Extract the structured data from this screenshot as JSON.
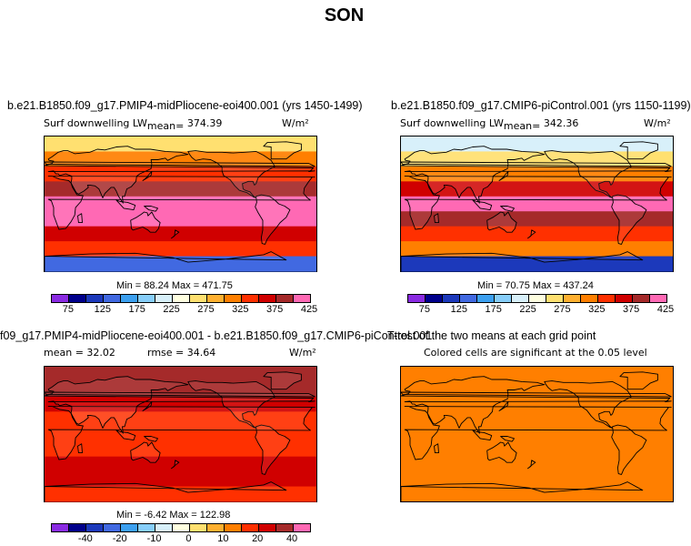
{
  "page": {
    "title": "SON"
  },
  "colorbar_colors": [
    "#8a2be2",
    "#00008b",
    "#1c39bb",
    "#4169e1",
    "#3ca0f0",
    "#87cefa",
    "#d8f0fa",
    "#ffffe0",
    "#ffe070",
    "#ffb030",
    "#ff7f00",
    "#ff3000",
    "#d00000",
    "#a52a2a",
    "#ff69b4"
  ],
  "panels": [
    {
      "title": "b.e21.B1850.f09_g17.PMIP4-midPliocene-eoi400.001 (yrs 1450-1499)",
      "var_label": "Surf downwelling LW",
      "stat_label": "mean=",
      "stat_value": "374.39",
      "units": "W/m²",
      "min_label": "Min =",
      "min_value": "88.24",
      "max_label": "Max =",
      "max_value": "471.75",
      "cbar_ticks": [
        "75",
        "125",
        "175",
        "225",
        "275",
        "325",
        "375",
        "425"
      ]
    },
    {
      "title": "b.e21.B1850.f09_g17.CMIP6-piControl.001 (yrs 1150-1199)",
      "var_label": "Surf downwelling LW",
      "stat_label": "mean=",
      "stat_value": "342.36",
      "units": "W/m²",
      "min_label": "Min =",
      "min_value": "70.75",
      "max_label": "Max =",
      "max_value": "437.24",
      "cbar_ticks": [
        "75",
        "125",
        "175",
        "225",
        "275",
        "325",
        "375",
        "425"
      ]
    },
    {
      "title": "f09_g17.PMIP4-midPliocene-eoi400.001 - b.e21.B1850.f09_g17.CMIP6-piControl.001",
      "mean_label": "mean =",
      "mean_value": "32.02",
      "rmse_label": "rmse =",
      "rmse_value": "34.64",
      "units": "W/m²",
      "min_label": "Min =",
      "min_value": "-6.42",
      "max_label": "Max =",
      "max_value": "122.98",
      "cbar_ticks": [
        "-40",
        "-20",
        "-10",
        "0",
        "10",
        "20",
        "40"
      ]
    },
    {
      "title": "T-test of the two means at each grid point",
      "subtitle": "Colored cells are significant at the 0.05 level",
      "fill_color": "#ff7f00"
    }
  ],
  "chart_data": [
    {
      "type": "heatmap",
      "title": "b.e21.B1850.f09_g17.PMIP4-midPliocene-eoi400.001 (yrs 1450-1499)",
      "variable": "Surf downwelling LW",
      "units": "W/m2",
      "mean": 374.39,
      "min": 88.24,
      "max": 471.75,
      "color_levels": [
        75,
        100,
        125,
        150,
        175,
        200,
        225,
        250,
        275,
        300,
        325,
        350,
        375,
        400,
        425
      ],
      "zonal_pattern_by_lat": [
        {
          "lat": 85,
          "value": 260
        },
        {
          "lat": 65,
          "value": 310
        },
        {
          "lat": 45,
          "value": 345
        },
        {
          "lat": 25,
          "value": 390
        },
        {
          "lat": 5,
          "value": 430
        },
        {
          "lat": -15,
          "value": 410
        },
        {
          "lat": -35,
          "value": 370
        },
        {
          "lat": -55,
          "value": 330
        },
        {
          "lat": -75,
          "value": 130
        }
      ]
    },
    {
      "type": "heatmap",
      "title": "b.e21.B1850.f09_g17.CMIP6-piControl.001 (yrs 1150-1199)",
      "variable": "Surf downwelling LW",
      "units": "W/m2",
      "mean": 342.36,
      "min": 70.75,
      "max": 437.24,
      "color_levels": [
        75,
        100,
        125,
        150,
        175,
        200,
        225,
        250,
        275,
        300,
        325,
        350,
        375,
        400,
        425
      ],
      "zonal_pattern_by_lat": [
        {
          "lat": 85,
          "value": 200
        },
        {
          "lat": 65,
          "value": 260
        },
        {
          "lat": 45,
          "value": 310
        },
        {
          "lat": 25,
          "value": 370
        },
        {
          "lat": 5,
          "value": 410
        },
        {
          "lat": -15,
          "value": 385
        },
        {
          "lat": -35,
          "value": 340
        },
        {
          "lat": -55,
          "value": 300
        },
        {
          "lat": -75,
          "value": 110
        }
      ]
    },
    {
      "type": "heatmap",
      "title": "f09_g17.PMIP4-midPliocene-eoi400.001 - b.e21.B1850.f09_g17.CMIP6-piControl.001",
      "units": "W/m2",
      "mean": 32.02,
      "rmse": 34.64,
      "min": -6.42,
      "max": 122.98,
      "color_levels": [
        -40,
        -30,
        -20,
        -15,
        -10,
        -5,
        0,
        5,
        10,
        15,
        20,
        30,
        40
      ],
      "zonal_pattern_by_lat": [
        {
          "lat": 85,
          "value": 50
        },
        {
          "lat": 65,
          "value": 45
        },
        {
          "lat": 45,
          "value": 35
        },
        {
          "lat": 25,
          "value": 25
        },
        {
          "lat": 5,
          "value": 22
        },
        {
          "lat": -15,
          "value": 25
        },
        {
          "lat": -35,
          "value": 30
        },
        {
          "lat": -55,
          "value": 35
        },
        {
          "lat": -75,
          "value": 25
        }
      ]
    },
    {
      "type": "heatmap",
      "title": "T-test of the two means at each grid point",
      "subtitle": "Colored cells are significant at the 0.05 level",
      "significant_fraction": 0.99
    }
  ]
}
